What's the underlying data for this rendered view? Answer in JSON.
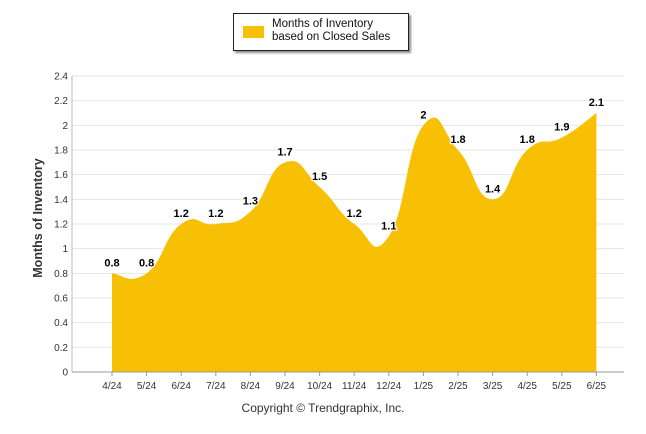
{
  "chart_data": {
    "type": "area",
    "categories": [
      "4/24",
      "5/24",
      "6/24",
      "7/24",
      "8/24",
      "9/24",
      "10/24",
      "11/24",
      "12/24",
      "1/25",
      "2/25",
      "3/25",
      "4/25",
      "5/25",
      "6/25"
    ],
    "series": [
      {
        "name": "Months of Inventory based on Closed Sales",
        "values": [
          0.8,
          0.8,
          1.2,
          1.2,
          1.3,
          1.7,
          1.5,
          1.2,
          1.1,
          2.0,
          1.8,
          1.4,
          1.8,
          1.9,
          2.1
        ],
        "color": "#F8C004"
      }
    ],
    "data_labels": [
      "0.8",
      "0.8",
      "1.2",
      "1.2",
      "1.3",
      "1.7",
      "1.5",
      "1.2",
      "1.1",
      "2",
      "1.8",
      "1.4",
      "1.8",
      "1.9",
      "2.1"
    ],
    "ylabel": "Months of Inventory",
    "xlabel": "",
    "ylim": [
      0,
      2.4
    ],
    "yticks": [
      "0",
      "0.2",
      "0.4",
      "0.6",
      "0.8",
      "1",
      "1.2",
      "1.4",
      "1.6",
      "1.8",
      "2",
      "2.2",
      "2.4"
    ],
    "grid": true,
    "legend_position": "top-center"
  },
  "copyright": "Copyright © Trendgraphix, Inc."
}
